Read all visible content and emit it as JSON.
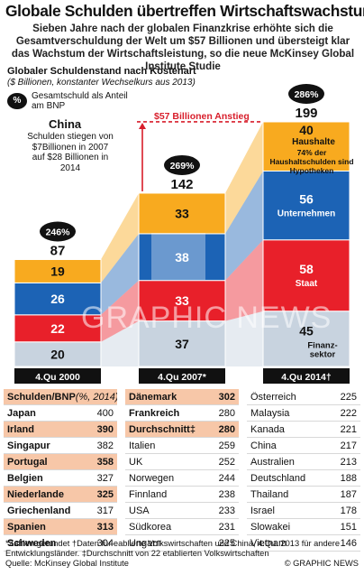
{
  "title": "Globale Schulden übertreffen Wirtschaftswachstum",
  "subtitle": "Sieben Jahre nach der globalen Finanzkrise erhöhte sich die Gesamtverschuldung der Welt um $57 Billionen und übersteigt klar das Wachstum der Wirtschaftsleistung, so die neue McKinsey Global Institute Studie",
  "chart_data": {
    "type": "bar",
    "title": "Globaler Schuldenstand nach Kostenart",
    "subtitle": "($ Billionen, konstanter Wechselkurs aus 2013)",
    "categories": [
      "4.Qu 2000",
      "4.Qu 2007*",
      "4.Qu 2014†"
    ],
    "series": [
      {
        "name": "Finanzsektor",
        "color": "#c8d3df",
        "values": [
          20,
          37,
          45
        ]
      },
      {
        "name": "Staat",
        "color": "#e8202a",
        "values": [
          22,
          33,
          58
        ]
      },
      {
        "name": "Unternehmen",
        "color": "#1c63b5",
        "values": [
          26,
          38,
          56
        ]
      },
      {
        "name": "Haushalte",
        "color": "#f8aa1f",
        "values": [
          19,
          33,
          40
        ]
      }
    ],
    "totals": [
      87,
      142,
      199
    ],
    "pct_gdp": [
      "246%",
      "269%",
      "286%"
    ],
    "segment_labels_2014": {
      "Finanzsektor": "Finanz-\nsektor",
      "Staat": "Staat",
      "Unternehmen": "Unternehmen",
      "Haushalte": "Haushalte"
    },
    "haushalte_note": "74% der Haushaltschulden sind Hypotheken",
    "annotation_increase": "$57 Billionen Anstieg",
    "ylim": [
      0,
      210
    ]
  },
  "legend": {
    "badge": "%",
    "text": "Gesamtschuld als Anteil am BNP"
  },
  "china_note": {
    "title": "China",
    "text": "Schulden stiegen von $7Billionen in 2007 auf $28 Billionen in 2014"
  },
  "watermark": "GRAPHIC NEWS",
  "table": {
    "header": {
      "label": "Schulden/BNP",
      "unit": "(%, 2014)"
    },
    "columns": [
      [
        {
          "name": "Japan",
          "value": "400",
          "style": "bold"
        },
        {
          "name": "Irland",
          "value": "390",
          "style": "hl"
        },
        {
          "name": "Singapur",
          "value": "382",
          "style": "bold"
        },
        {
          "name": "Portugal",
          "value": "358",
          "style": "hl"
        },
        {
          "name": "Belgien",
          "value": "327",
          "style": "bold"
        },
        {
          "name": "Niederlande",
          "value": "325",
          "style": "hl"
        },
        {
          "name": "Griechenland",
          "value": "317",
          "style": "bold"
        },
        {
          "name": "Spanien",
          "value": "313",
          "style": "hl"
        },
        {
          "name": "Schweden",
          "value": "304",
          "style": "bold"
        }
      ],
      [
        {
          "name": "Dänemark",
          "value": "302",
          "style": "hl"
        },
        {
          "name": "Frankreich",
          "value": "280",
          "style": "bold"
        },
        {
          "name": "Durchschnitt‡",
          "value": "280",
          "style": "hl"
        },
        {
          "name": "Italien",
          "value": "259",
          "style": ""
        },
        {
          "name": "UK",
          "value": "252",
          "style": ""
        },
        {
          "name": "Norwegen",
          "value": "244",
          "style": ""
        },
        {
          "name": "Finnland",
          "value": "238",
          "style": ""
        },
        {
          "name": "USA",
          "value": "233",
          "style": ""
        },
        {
          "name": "Südkorea",
          "value": "231",
          "style": ""
        },
        {
          "name": "Ungarn",
          "value": "225",
          "style": ""
        }
      ],
      [
        {
          "name": "Österreich",
          "value": "225",
          "style": ""
        },
        {
          "name": "Malaysia",
          "value": "222",
          "style": ""
        },
        {
          "name": "Kanada",
          "value": "221",
          "style": ""
        },
        {
          "name": "China",
          "value": "217",
          "style": ""
        },
        {
          "name": "Australien",
          "value": "213",
          "style": ""
        },
        {
          "name": "Deutschland",
          "value": "188",
          "style": ""
        },
        {
          "name": "Thailand",
          "value": "187",
          "style": ""
        },
        {
          "name": "Israel",
          "value": "178",
          "style": ""
        },
        {
          "name": "Slowakei",
          "value": "151",
          "style": ""
        },
        {
          "name": "Vietnam",
          "value": "146",
          "style": ""
        }
      ]
    ]
  },
  "footnotes": "*Zahlen gerundet   †Daten für eablierte Volkswirtschaften und China, 4.Qu. 2013 für andere Entwicklungsländer.   ‡Durchschnitt von 22 etablierten Volkswirtschaften",
  "source": "Quelle: McKinsey Global Institute",
  "credit": "© GRAPHIC NEWS"
}
